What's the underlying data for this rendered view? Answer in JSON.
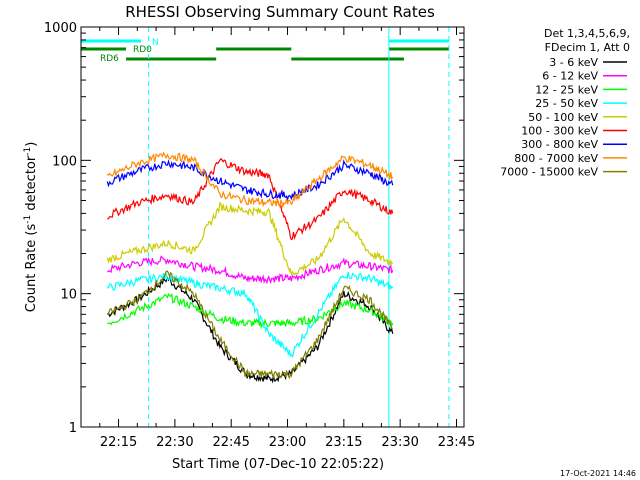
{
  "chart_data": {
    "type": "line",
    "title": "RHESSI Observing Summary Count Rates",
    "xlabel": "Start Time (07-Dec-10 22:05:22)",
    "ylabel_main": "Count Rate (s",
    "ylabel_sup1": "-1",
    "ylabel_mid": " detector",
    "ylabel_sup2": "-1",
    "ylabel_end": ")",
    "yscale": "log",
    "ylim": [
      1,
      1000
    ],
    "xlim": [
      "22:05",
      "23:47"
    ],
    "x_ticks": [
      "22:15",
      "22:30",
      "22:45",
      "23:00",
      "23:15",
      "23:30",
      "23:45"
    ],
    "y_ticks": [
      "1",
      "10",
      "100",
      "1000"
    ],
    "legend_header": [
      "Det 1,3,4,5,6,9,",
      "FDecim 1, Att 0"
    ],
    "legend_position": "right",
    "timestamp": "17-Oct-2021 14:46",
    "flags": [
      {
        "label": "N",
        "color": "#00ffff"
      },
      {
        "label": "RD0",
        "color": "#008800"
      },
      {
        "label": "RD6",
        "color": "#008800"
      }
    ],
    "flag_bars": {
      "N": [
        [
          "22:05",
          "22:21"
        ],
        [
          "23:27",
          "23:43"
        ]
      ],
      "RD0": [
        [
          "22:05",
          "22:17"
        ],
        [
          "22:41",
          "23:01"
        ],
        [
          "23:27",
          "23:43"
        ]
      ],
      "RD6": [
        [
          "22:17",
          "22:41"
        ],
        [
          "23:01",
          "23:31"
        ]
      ]
    },
    "vlines": {
      "solid": [
        "22:05",
        "23:27"
      ],
      "dashed": [
        "22:23",
        "23:43"
      ]
    },
    "series": [
      {
        "name": "3 - 6 keV",
        "color": "#000000",
        "x": [
          "22:12",
          "22:20",
          "22:28",
          "22:35",
          "22:42",
          "22:49",
          "22:55",
          "23:01",
          "23:08",
          "23:15",
          "23:22",
          "23:28"
        ],
        "y": [
          7,
          9,
          13,
          9,
          4,
          2.5,
          2.3,
          2.5,
          4,
          10,
          8,
          5
        ]
      },
      {
        "name": "6 - 12 keV",
        "color": "#ff00ff",
        "x": [
          "22:12",
          "22:20",
          "22:28",
          "22:35",
          "22:42",
          "22:49",
          "22:55",
          "23:01",
          "23:08",
          "23:15",
          "23:22",
          "23:28"
        ],
        "y": [
          15,
          17,
          18,
          16,
          15,
          13,
          13,
          13,
          15,
          17,
          16,
          15
        ]
      },
      {
        "name": "12 - 25 keV",
        "color": "#00ff00",
        "x": [
          "22:12",
          "22:20",
          "22:28",
          "22:35",
          "22:42",
          "22:49",
          "22:55",
          "23:01",
          "23:08",
          "23:15",
          "23:22",
          "23:28"
        ],
        "y": [
          6,
          7.5,
          9.5,
          8,
          6.5,
          6,
          6,
          6,
          6.5,
          8.5,
          7.5,
          6
        ]
      },
      {
        "name": "25 - 50 keV",
        "color": "#00ffff",
        "x": [
          "22:12",
          "22:20",
          "22:28",
          "22:35",
          "22:42",
          "22:49",
          "22:55",
          "23:01",
          "23:08",
          "23:15",
          "23:22",
          "23:28"
        ],
        "y": [
          11,
          12.5,
          13.5,
          12,
          11,
          10,
          5,
          3.5,
          7,
          14,
          13,
          11
        ]
      },
      {
        "name": "50 - 100 keV",
        "color": "#cccc00",
        "x": [
          "22:12",
          "22:20",
          "22:28",
          "22:35",
          "22:42",
          "22:49",
          "22:55",
          "23:01",
          "23:08",
          "23:15",
          "23:22",
          "23:28"
        ],
        "y": [
          18,
          21,
          24,
          21,
          45,
          42,
          41,
          14,
          18,
          37,
          20,
          17
        ]
      },
      {
        "name": "100 - 300 keV",
        "color": "#ff0000",
        "x": [
          "22:12",
          "22:20",
          "22:28",
          "22:35",
          "22:42",
          "22:49",
          "22:55",
          "23:01",
          "23:08",
          "23:15",
          "23:22",
          "23:28"
        ],
        "y": [
          38,
          48,
          55,
          48,
          100,
          82,
          78,
          27,
          36,
          60,
          50,
          40
        ]
      },
      {
        "name": "300 - 800 keV",
        "color": "#0000ff",
        "x": [
          "22:12",
          "22:20",
          "22:28",
          "22:35",
          "22:42",
          "22:49",
          "22:55",
          "23:01",
          "23:08",
          "23:15",
          "23:22",
          "23:28"
        ],
        "y": [
          68,
          83,
          96,
          88,
          70,
          60,
          56,
          54,
          65,
          92,
          80,
          65
        ]
      },
      {
        "name": "800 - 7000 keV",
        "color": "#ff8800",
        "x": [
          "22:12",
          "22:20",
          "22:28",
          "22:35",
          "22:42",
          "22:49",
          "22:55",
          "23:01",
          "23:08",
          "23:15",
          "23:22",
          "23:28"
        ],
        "y": [
          75,
          95,
          110,
          100,
          56,
          50,
          48,
          48,
          72,
          105,
          92,
          75
        ]
      },
      {
        "name": "7000 - 15000 keV",
        "color": "#808000",
        "x": [
          "22:12",
          "22:20",
          "22:28",
          "22:35",
          "22:42",
          "22:49",
          "22:55",
          "23:01",
          "23:08",
          "23:15",
          "23:22",
          "23:28"
        ],
        "y": [
          7,
          9,
          14,
          10,
          4.5,
          2.5,
          2.5,
          2.5,
          4.5,
          11,
          9,
          5.5
        ]
      }
    ]
  }
}
